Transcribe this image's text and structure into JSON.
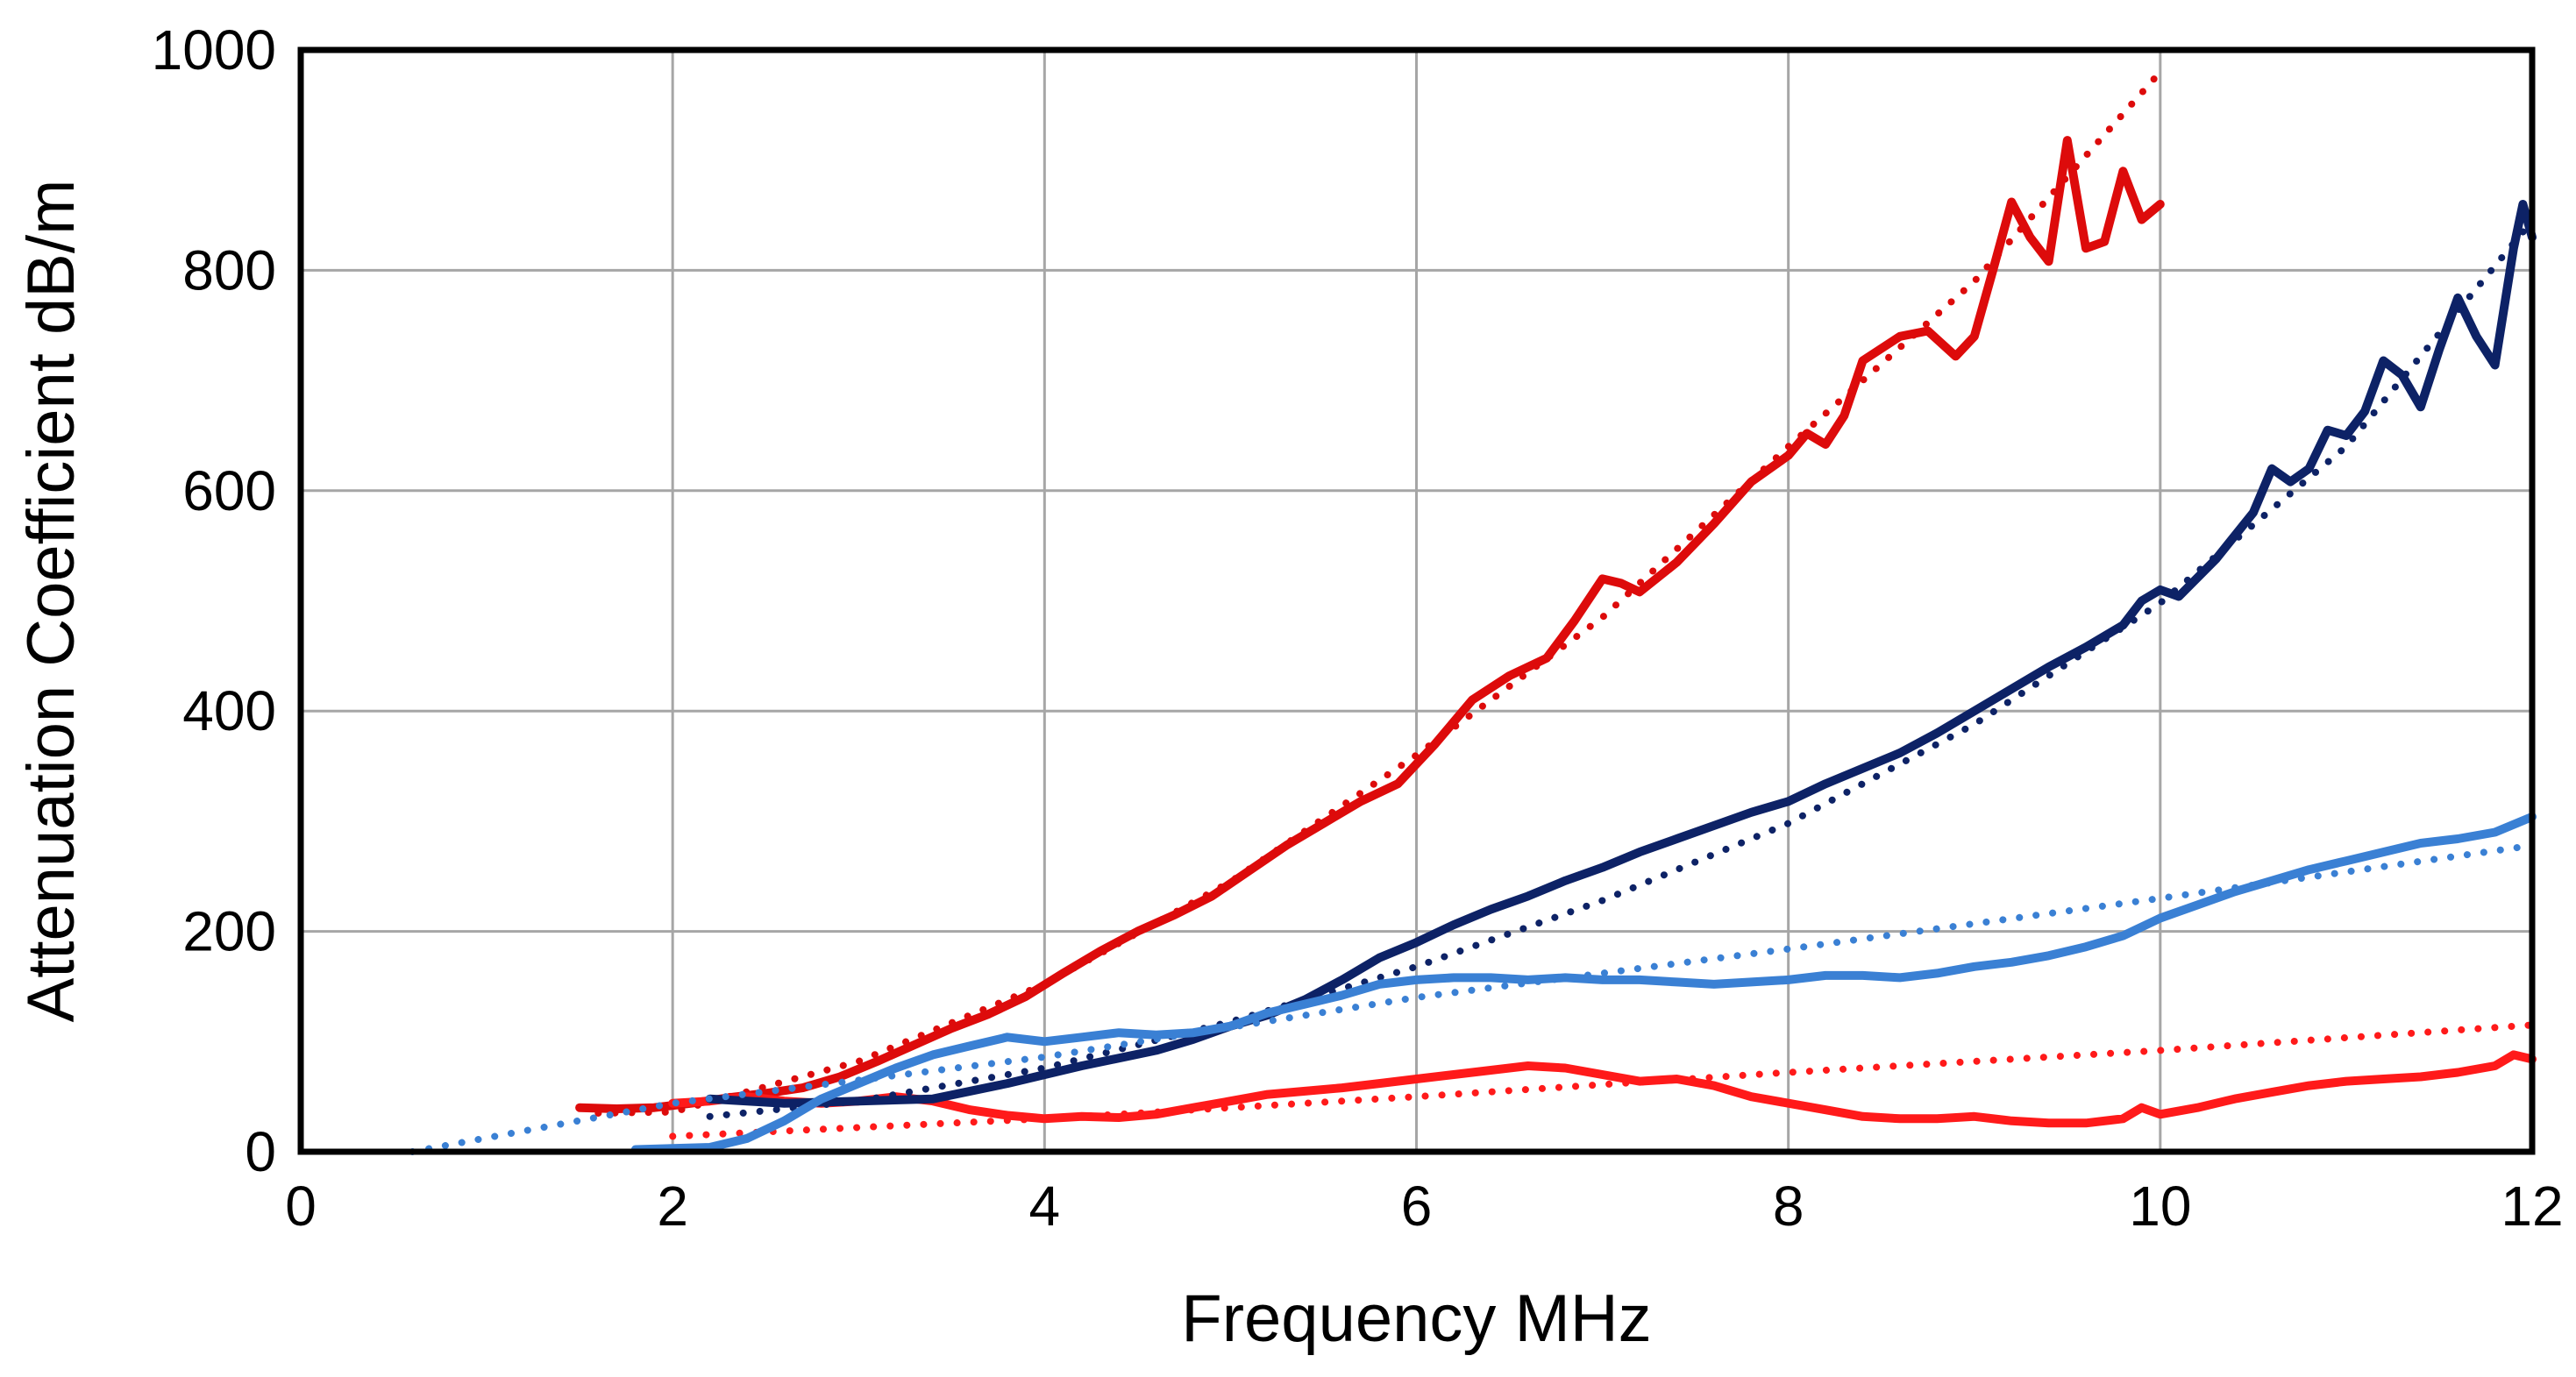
{
  "chart_data": {
    "type": "line",
    "title": "",
    "xlabel": "Frequency  MHz",
    "ylabel": "Attenuation Coefficient  dB/m",
    "xlim": [
      0,
      12
    ],
    "ylim": [
      0,
      1000
    ],
    "xticks": [
      0,
      2,
      4,
      6,
      8,
      10,
      12
    ],
    "yticks": [
      0,
      200,
      400,
      600,
      800,
      1000
    ],
    "grid": true,
    "legend": "none",
    "series": [
      {
        "color": "#dd0b0b",
        "style": "solid",
        "points": [
          [
            1.5,
            40
          ],
          [
            1.7,
            39
          ],
          [
            1.9,
            40
          ],
          [
            2.1,
            44
          ],
          [
            2.3,
            49
          ],
          [
            2.5,
            53
          ],
          [
            2.7,
            58
          ],
          [
            2.9,
            68
          ],
          [
            3.1,
            82
          ],
          [
            3.3,
            97
          ],
          [
            3.5,
            112
          ],
          [
            3.7,
            125
          ],
          [
            3.9,
            141
          ],
          [
            4.1,
            162
          ],
          [
            4.3,
            182
          ],
          [
            4.5,
            200
          ],
          [
            4.7,
            215
          ],
          [
            4.9,
            232
          ],
          [
            5.1,
            255
          ],
          [
            5.3,
            278
          ],
          [
            5.5,
            298
          ],
          [
            5.7,
            318
          ],
          [
            5.9,
            334
          ],
          [
            6.1,
            370
          ],
          [
            6.3,
            410
          ],
          [
            6.5,
            432
          ],
          [
            6.7,
            448
          ],
          [
            6.85,
            482
          ],
          [
            7.0,
            520
          ],
          [
            7.1,
            516
          ],
          [
            7.2,
            508
          ],
          [
            7.4,
            535
          ],
          [
            7.6,
            570
          ],
          [
            7.8,
            608
          ],
          [
            8.0,
            632
          ],
          [
            8.1,
            652
          ],
          [
            8.2,
            642
          ],
          [
            8.3,
            668
          ],
          [
            8.4,
            718
          ],
          [
            8.6,
            740
          ],
          [
            8.75,
            745
          ],
          [
            8.9,
            722
          ],
          [
            9.0,
            740
          ],
          [
            9.1,
            800
          ],
          [
            9.2,
            862
          ],
          [
            9.3,
            830
          ],
          [
            9.4,
            808
          ],
          [
            9.5,
            918
          ],
          [
            9.6,
            820
          ],
          [
            9.7,
            826
          ],
          [
            9.8,
            890
          ],
          [
            9.9,
            846
          ],
          [
            10.0,
            860
          ]
        ]
      },
      {
        "color": "#dd0b0b",
        "style": "dotted",
        "points": [
          [
            1.6,
            35
          ],
          [
            2.0,
            36
          ],
          [
            3.0,
            82
          ],
          [
            4.0,
            152
          ],
          [
            5.0,
            245
          ],
          [
            6.0,
            360
          ],
          [
            7.0,
            485
          ],
          [
            8.0,
            640
          ],
          [
            9.0,
            790
          ],
          [
            10.0,
            980
          ]
        ]
      },
      {
        "color": "#ff1a1a",
        "style": "solid",
        "points": [
          [
            2.0,
            44
          ],
          [
            2.2,
            46
          ],
          [
            2.4,
            50
          ],
          [
            2.6,
            46
          ],
          [
            2.8,
            44
          ],
          [
            3.0,
            46
          ],
          [
            3.2,
            50
          ],
          [
            3.4,
            46
          ],
          [
            3.6,
            38
          ],
          [
            3.8,
            33
          ],
          [
            4.0,
            30
          ],
          [
            4.2,
            32
          ],
          [
            4.4,
            31
          ],
          [
            4.6,
            34
          ],
          [
            4.8,
            40
          ],
          [
            5.0,
            46
          ],
          [
            5.2,
            52
          ],
          [
            5.4,
            55
          ],
          [
            5.6,
            58
          ],
          [
            5.8,
            62
          ],
          [
            6.0,
            66
          ],
          [
            6.2,
            70
          ],
          [
            6.4,
            74
          ],
          [
            6.6,
            78
          ],
          [
            6.8,
            76
          ],
          [
            7.0,
            70
          ],
          [
            7.2,
            64
          ],
          [
            7.4,
            66
          ],
          [
            7.6,
            60
          ],
          [
            7.8,
            50
          ],
          [
            8.0,
            44
          ],
          [
            8.2,
            38
          ],
          [
            8.4,
            32
          ],
          [
            8.6,
            30
          ],
          [
            8.8,
            30
          ],
          [
            9.0,
            32
          ],
          [
            9.2,
            28
          ],
          [
            9.4,
            26
          ],
          [
            9.6,
            26
          ],
          [
            9.8,
            30
          ],
          [
            9.9,
            40
          ],
          [
            10.0,
            34
          ],
          [
            10.2,
            40
          ],
          [
            10.4,
            48
          ],
          [
            10.6,
            54
          ],
          [
            10.8,
            60
          ],
          [
            11.0,
            64
          ],
          [
            11.2,
            66
          ],
          [
            11.4,
            68
          ],
          [
            11.6,
            72
          ],
          [
            11.8,
            78
          ],
          [
            11.9,
            88
          ],
          [
            12.0,
            84
          ]
        ]
      },
      {
        "color": "#ff1a1a",
        "style": "dotted",
        "points": [
          [
            2.0,
            14
          ],
          [
            4.0,
            30
          ],
          [
            6.0,
            50
          ],
          [
            8.0,
            72
          ],
          [
            10.0,
            92
          ],
          [
            12.0,
            115
          ]
        ]
      },
      {
        "color": "#0d2266",
        "style": "solid",
        "points": [
          [
            2.2,
            48
          ],
          [
            2.6,
            44
          ],
          [
            3.0,
            46
          ],
          [
            3.4,
            48
          ],
          [
            3.8,
            62
          ],
          [
            4.2,
            78
          ],
          [
            4.6,
            92
          ],
          [
            4.8,
            102
          ],
          [
            5.0,
            114
          ],
          [
            5.2,
            124
          ],
          [
            5.4,
            138
          ],
          [
            5.6,
            156
          ],
          [
            5.8,
            176
          ],
          [
            6.0,
            190
          ],
          [
            6.2,
            206
          ],
          [
            6.4,
            220
          ],
          [
            6.6,
            232
          ],
          [
            6.8,
            246
          ],
          [
            7.0,
            258
          ],
          [
            7.2,
            272
          ],
          [
            7.4,
            284
          ],
          [
            7.6,
            296
          ],
          [
            7.8,
            308
          ],
          [
            8.0,
            318
          ],
          [
            8.2,
            334
          ],
          [
            8.4,
            348
          ],
          [
            8.6,
            362
          ],
          [
            8.8,
            380
          ],
          [
            9.0,
            400
          ],
          [
            9.2,
            420
          ],
          [
            9.4,
            440
          ],
          [
            9.6,
            458
          ],
          [
            9.8,
            478
          ],
          [
            9.9,
            500
          ],
          [
            10.0,
            510
          ],
          [
            10.1,
            504
          ],
          [
            10.3,
            538
          ],
          [
            10.5,
            580
          ],
          [
            10.6,
            620
          ],
          [
            10.7,
            608
          ],
          [
            10.8,
            620
          ],
          [
            10.9,
            655
          ],
          [
            11.0,
            650
          ],
          [
            11.1,
            672
          ],
          [
            11.2,
            718
          ],
          [
            11.3,
            705
          ],
          [
            11.4,
            676
          ],
          [
            11.5,
            728
          ],
          [
            11.6,
            775
          ],
          [
            11.7,
            740
          ],
          [
            11.8,
            714
          ],
          [
            11.9,
            820
          ],
          [
            11.95,
            860
          ],
          [
            12.0,
            830
          ]
        ]
      },
      {
        "color": "#0d2266",
        "style": "dotted",
        "points": [
          [
            2.2,
            32
          ],
          [
            3.0,
            46
          ],
          [
            4.0,
            76
          ],
          [
            5.0,
            118
          ],
          [
            6.0,
            168
          ],
          [
            7.0,
            228
          ],
          [
            8.0,
            298
          ],
          [
            9.0,
            388
          ],
          [
            10.0,
            498
          ],
          [
            11.0,
            640
          ],
          [
            12.0,
            845
          ]
        ]
      },
      {
        "color": "#3a80d4",
        "style": "solid",
        "points": [
          [
            1.8,
            2
          ],
          [
            2.0,
            3
          ],
          [
            2.2,
            4
          ],
          [
            2.4,
            12
          ],
          [
            2.6,
            28
          ],
          [
            2.8,
            48
          ],
          [
            3.0,
            62
          ],
          [
            3.2,
            76
          ],
          [
            3.4,
            88
          ],
          [
            3.6,
            96
          ],
          [
            3.8,
            104
          ],
          [
            4.0,
            100
          ],
          [
            4.2,
            104
          ],
          [
            4.4,
            108
          ],
          [
            4.6,
            106
          ],
          [
            4.8,
            108
          ],
          [
            5.0,
            114
          ],
          [
            5.2,
            126
          ],
          [
            5.4,
            134
          ],
          [
            5.6,
            142
          ],
          [
            5.8,
            152
          ],
          [
            6.0,
            156
          ],
          [
            6.2,
            158
          ],
          [
            6.4,
            158
          ],
          [
            6.6,
            156
          ],
          [
            6.8,
            158
          ],
          [
            7.0,
            156
          ],
          [
            7.2,
            156
          ],
          [
            7.4,
            154
          ],
          [
            7.6,
            152
          ],
          [
            7.8,
            154
          ],
          [
            8.0,
            156
          ],
          [
            8.2,
            160
          ],
          [
            8.4,
            160
          ],
          [
            8.6,
            158
          ],
          [
            8.8,
            162
          ],
          [
            9.0,
            168
          ],
          [
            9.2,
            172
          ],
          [
            9.4,
            178
          ],
          [
            9.6,
            186
          ],
          [
            9.8,
            196
          ],
          [
            10.0,
            212
          ],
          [
            10.2,
            224
          ],
          [
            10.4,
            236
          ],
          [
            10.6,
            246
          ],
          [
            10.8,
            256
          ],
          [
            11.0,
            264
          ],
          [
            11.2,
            272
          ],
          [
            11.4,
            280
          ],
          [
            11.6,
            284
          ],
          [
            11.8,
            290
          ],
          [
            12.0,
            304
          ]
        ]
      },
      {
        "color": "#3a80d4",
        "style": "dotted",
        "points": [
          [
            0.6,
            0
          ],
          [
            2.0,
            44
          ],
          [
            4.0,
            86
          ],
          [
            6.0,
            140
          ],
          [
            8.0,
            184
          ],
          [
            10.0,
            230
          ],
          [
            12.0,
            278
          ]
        ]
      }
    ]
  }
}
